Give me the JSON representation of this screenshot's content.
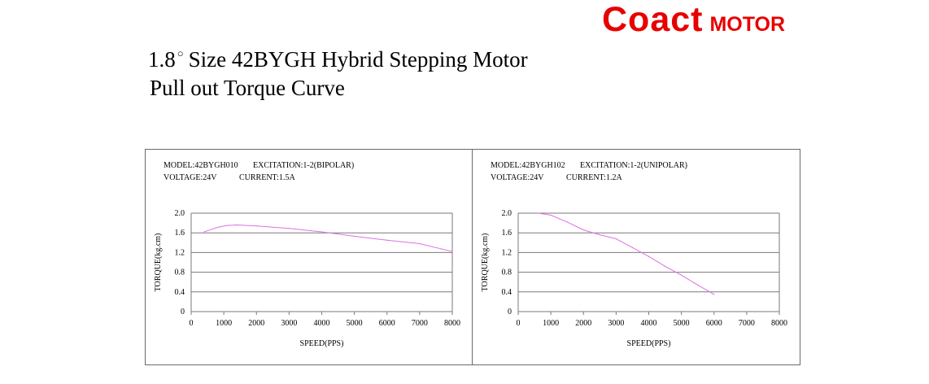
{
  "header": {
    "brand": "Coact",
    "brand_suffix": "MOTOR",
    "title_step": "1.8",
    "title_degree": "○",
    "title_rest": "Size 42BYGH Hybrid Stepping Motor",
    "subtitle": "Pull out Torque Curve",
    "brand_color": "#e80000"
  },
  "chart_data": [
    {
      "type": "line",
      "info": {
        "model": "MODEL:42BYGH010",
        "excitation": "EXCITATION:1-2(BIPOLAR)",
        "voltage": "VOLTAGE:24V",
        "current": "CURRENT:1.5A"
      },
      "xlabel": "SPEED(PPS)",
      "ylabel": "TORQUE(kg.cm)",
      "xlim": [
        0,
        8000
      ],
      "ylim": [
        0,
        2.0
      ],
      "x_ticks": [
        0,
        1000,
        2000,
        3000,
        4000,
        5000,
        6000,
        7000,
        8000
      ],
      "y_ticks": [
        0,
        0.4,
        0.8,
        1.2,
        1.6,
        2.0
      ],
      "x_tick_labels": [
        "0",
        "1000",
        "2000",
        "3000",
        "4000",
        "5000",
        "6000",
        "7000",
        "8000"
      ],
      "y_tick_labels": [
        "0",
        "0.4",
        "0.8",
        "1.2",
        "1.6",
        "2.0"
      ],
      "grid": "horizontal",
      "line_color": "#e070e0",
      "series": [
        {
          "x": [
            400,
            800,
            1100,
            1400,
            2000,
            3000,
            4000,
            5000,
            6000,
            7000,
            8000
          ],
          "y": [
            1.62,
            1.71,
            1.75,
            1.76,
            1.74,
            1.69,
            1.62,
            1.53,
            1.45,
            1.38,
            1.22
          ]
        }
      ]
    },
    {
      "type": "line",
      "info": {
        "model": "MODEL:42BYGH102",
        "excitation": "EXCITATION:1-2(UNIPOLAR)",
        "voltage": "VOLTAGE:24V",
        "current": "CURRENT:1.2A"
      },
      "xlabel": "SPEED(PPS)",
      "ylabel": "TORQUE(kg.cm)",
      "xlim": [
        0,
        8000
      ],
      "ylim": [
        0,
        2.0
      ],
      "x_ticks": [
        0,
        1000,
        2000,
        3000,
        4000,
        5000,
        6000,
        7000,
        8000
      ],
      "y_ticks": [
        0,
        0.4,
        0.8,
        1.2,
        1.6,
        2.0
      ],
      "x_tick_labels": [
        "0",
        "1000",
        "2000",
        "3000",
        "4000",
        "5000",
        "6000",
        "7000",
        "8000"
      ],
      "y_tick_labels": [
        "0",
        "0.4",
        "0.8",
        "1.2",
        "1.6",
        "2.0"
      ],
      "grid": "horizontal",
      "line_color": "#e070e0",
      "series": [
        {
          "x": [
            600,
            1000,
            1500,
            2000,
            2500,
            3000,
            3500,
            4000,
            4500,
            5000,
            5500,
            6000
          ],
          "y": [
            2.0,
            1.96,
            1.82,
            1.66,
            1.56,
            1.48,
            1.3,
            1.12,
            0.92,
            0.74,
            0.54,
            0.35
          ]
        }
      ]
    }
  ]
}
